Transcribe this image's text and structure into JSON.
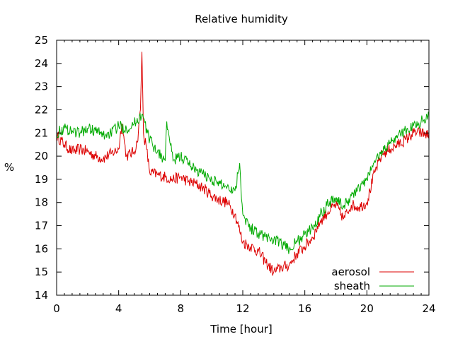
{
  "chart_data": {
    "type": "line",
    "title": "Relative humidity",
    "xlabel": "Time [hour]",
    "ylabel": "%",
    "xlim": [
      0,
      24
    ],
    "ylim": [
      14,
      25
    ],
    "xticks": [
      0,
      4,
      8,
      12,
      16,
      20,
      24
    ],
    "yticks": [
      14,
      15,
      16,
      17,
      18,
      19,
      20,
      21,
      22,
      23,
      24,
      25
    ],
    "grid": false,
    "legend_position": "bottom-right",
    "series": [
      {
        "name": "aerosol",
        "color": "#dd0000",
        "x": [
          0,
          0.5,
          1,
          1.5,
          2,
          2.5,
          3,
          3.5,
          4,
          4.2,
          4.5,
          5,
          5.2,
          5.4,
          5.5,
          5.6,
          5.8,
          6,
          6.5,
          7,
          7.5,
          8,
          8.5,
          9,
          9.5,
          10,
          10.5,
          11,
          11.5,
          12,
          12.5,
          13,
          13.5,
          14,
          14.5,
          15,
          15.5,
          16,
          16.5,
          17,
          17.5,
          18,
          18.5,
          19,
          19.5,
          20,
          20.5,
          21,
          21.5,
          22,
          22.5,
          23,
          23.5,
          24
        ],
        "y": [
          20.9,
          20.5,
          20.2,
          20.3,
          20.2,
          20.0,
          19.9,
          20.1,
          20.3,
          21.4,
          20.0,
          20.2,
          20.6,
          22.0,
          24.5,
          21.0,
          20.3,
          19.3,
          19.2,
          19.1,
          19.0,
          19.1,
          18.9,
          18.8,
          18.6,
          18.3,
          18.1,
          18.0,
          17.5,
          16.3,
          16.1,
          15.9,
          15.4,
          15.0,
          15.2,
          15.3,
          15.8,
          16.1,
          16.5,
          17.2,
          17.6,
          17.9,
          17.3,
          17.9,
          17.8,
          18.0,
          19.3,
          20.1,
          20.3,
          20.5,
          20.7,
          21.0,
          21.0,
          20.9
        ]
      },
      {
        "name": "sheath",
        "color": "#00aa00",
        "x": [
          0,
          0.5,
          1,
          1.5,
          2,
          2.5,
          3,
          3.5,
          4,
          4.5,
          5,
          5.5,
          6,
          6.5,
          7,
          7.1,
          7.5,
          8,
          8.5,
          9,
          9.5,
          10,
          10.5,
          11,
          11.5,
          11.8,
          12,
          12.5,
          13,
          13.5,
          14,
          14.5,
          15,
          15.5,
          16,
          16.5,
          17,
          17.5,
          18,
          18.5,
          19,
          19.5,
          20,
          20.5,
          21,
          21.5,
          22,
          22.5,
          23,
          23.5,
          24
        ],
        "y": [
          21.0,
          21.2,
          21.1,
          21.0,
          21.2,
          21.1,
          20.9,
          21.0,
          21.3,
          21.2,
          21.4,
          21.8,
          20.7,
          20.2,
          19.8,
          21.5,
          19.8,
          20.0,
          19.7,
          19.4,
          19.2,
          19.0,
          18.8,
          18.7,
          18.5,
          19.7,
          17.5,
          16.9,
          16.7,
          16.5,
          16.4,
          16.2,
          16.0,
          16.3,
          16.6,
          16.9,
          17.5,
          18.0,
          18.2,
          17.8,
          18.3,
          18.6,
          19.0,
          19.8,
          20.2,
          20.6,
          20.9,
          21.1,
          21.3,
          21.5,
          21.8
        ]
      }
    ]
  }
}
